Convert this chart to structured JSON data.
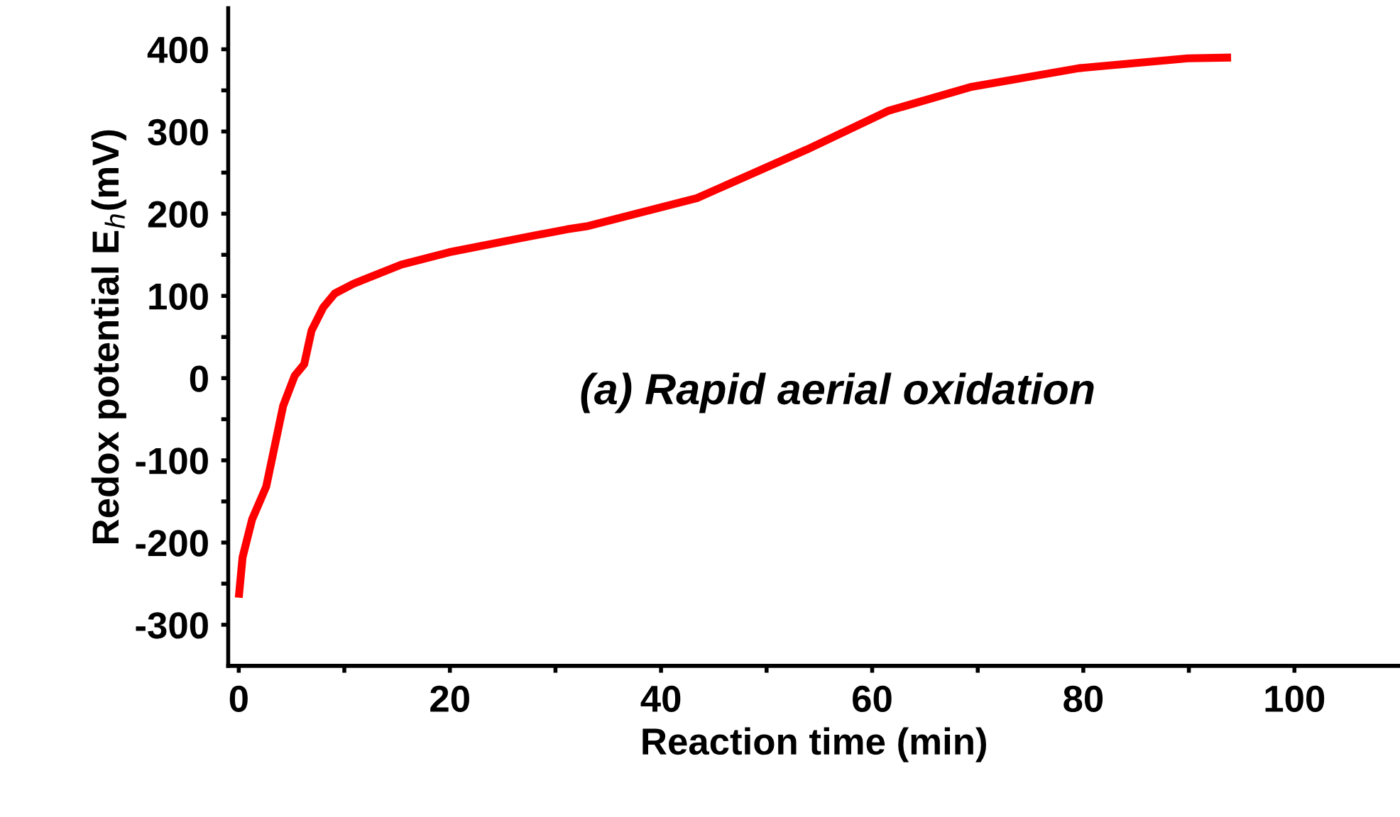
{
  "chart_data": {
    "type": "line",
    "xlabel": "Reaction time (min)",
    "ylabel": "Redox potential E$_{h}$(mV)",
    "annotations": [
      "(a) Rapid aerial oxidation"
    ],
    "series": [
      {
        "color": "#ff0000",
        "x": [
          0.0,
          0.36,
          1.26,
          2.6,
          4.2,
          5.3,
          6.2,
          6.9,
          8.0,
          9.1,
          10.9,
          15.4,
          19.9,
          26.6,
          31.1,
          33.1,
          43.4,
          53.8,
          61.5,
          69.3,
          79.6,
          89.9,
          94.0
        ],
        "values": [
          -267,
          -218,
          -172,
          -132,
          -34,
          3,
          17,
          58,
          86,
          103,
          115,
          138,
          153,
          170,
          181,
          185,
          219,
          278,
          325,
          354,
          377,
          389,
          390
        ]
      }
    ],
    "xlim": [
      -1,
      110
    ],
    "ylim": [
      -350,
      450
    ],
    "xticks": [
      0,
      {
        "value": 10,
        "label": null
      },
      20,
      {
        "value": 30,
        "label": null
      },
      40,
      {
        "value": 50,
        "label": null
      },
      60,
      {
        "value": 70,
        "label": null
      },
      80,
      {
        "value": 90,
        "label": null
      },
      100
    ],
    "yticks": [
      -300,
      {
        "value": -250,
        "label": null
      },
      -200,
      {
        "value": -150,
        "label": null
      },
      -100,
      {
        "value": -50,
        "label": null
      },
      0,
      {
        "value": 50,
        "label": null
      },
      100,
      {
        "value": 150,
        "label": null
      },
      200,
      {
        "value": 250,
        "label": null
      },
      300,
      {
        "value": 350,
        "label": null
      },
      400
    ],
    "grid": false,
    "legend": false,
    "marker": "none",
    "line_style": "solid"
  }
}
